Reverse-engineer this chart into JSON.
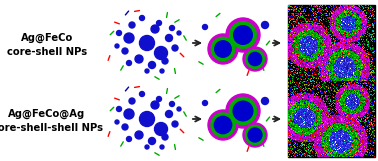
{
  "row1_label_line1": "Ag@FeCo",
  "row1_label_line2": "core-shell NPs",
  "row2_label_line1": "Ag@FeCo@Ag",
  "row2_label_line2": "core-shell-shell NPs",
  "bg_color": "#ffffff",
  "label_fontsize": 7.2,
  "label_fontweight": "bold",
  "arrow_color": "#222222",
  "dot_blue": "#1010cc",
  "dot_blue2": "#2222ee",
  "shell_magenta": "#cc00cc",
  "shell_green": "#00aa00",
  "shell_blue": "#0000cc"
}
